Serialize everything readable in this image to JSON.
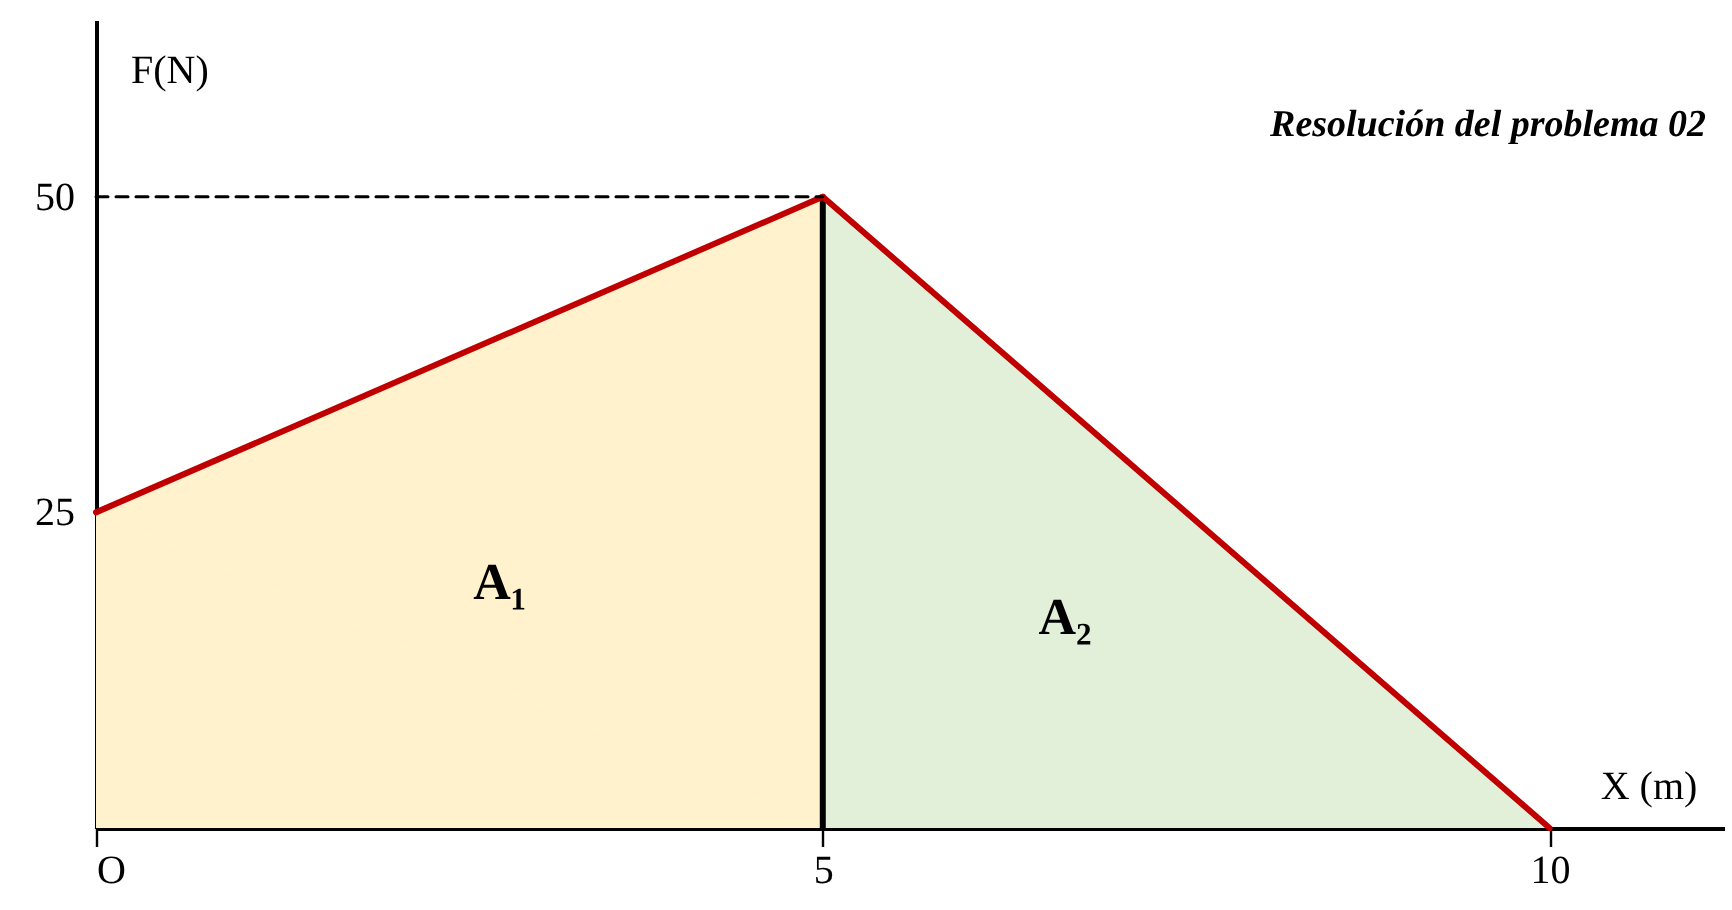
{
  "chart_data": {
    "type": "area",
    "title": "Resolución del problema 02",
    "xlabel": "X (m)",
    "ylabel": "F(N)",
    "xlim": [
      0,
      11.2
    ],
    "ylim": [
      0,
      64
    ],
    "xticks": [
      {
        "value": 0,
        "label": "O"
      },
      5,
      10
    ],
    "yticks": [
      25,
      50
    ],
    "series": [
      {
        "color": "#fff2cc",
        "x": [
          0,
          5
        ],
        "values": [
          25,
          50
        ]
      },
      {
        "color": "#e2efd9",
        "x": [
          5,
          10
        ],
        "values": [
          50,
          0
        ]
      },
      {
        "type": "line",
        "color": "#000000",
        "x": [
          5,
          5
        ],
        "values": [
          0,
          50
        ]
      },
      {
        "type": "line",
        "color": "#c00000",
        "x": [
          0,
          5,
          10
        ],
        "values": [
          25,
          50,
          0
        ]
      },
      {
        "type": "line",
        "color": "#000000",
        "line_style": "dashed",
        "x": [
          0,
          5
        ],
        "values": [
          50,
          50
        ]
      }
    ],
    "annotations": [
      "A₁",
      "A₂"
    ]
  }
}
